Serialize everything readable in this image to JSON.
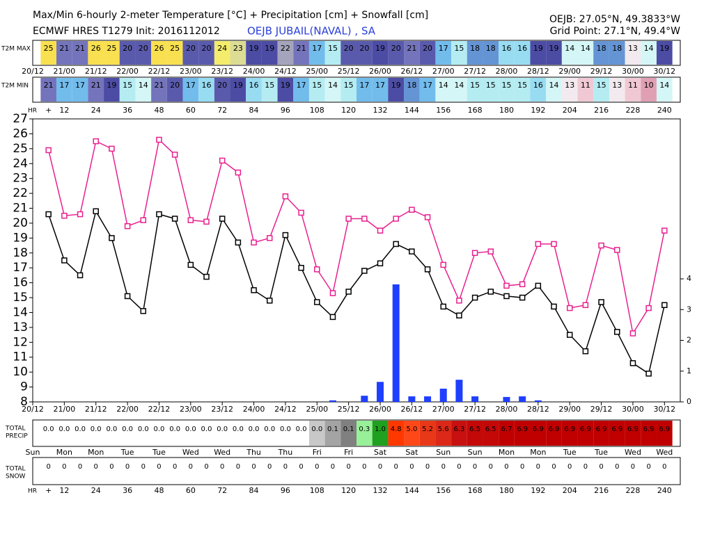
{
  "header": {
    "title": "Max/Min 6-hourly 2-meter Temperature [°C] + Precipitation [cm] + Snowfall [cm]",
    "model": "ECMWF HRES T1279 Init: 2016112012",
    "station": "OEJB JUBAIL(NAVAL) , SA",
    "coords": "OEJB: 27.05°N, 49.3833°W",
    "grid_point": "Grid Point: 27.1°N, 49.4°W"
  },
  "chart_data": {
    "type": "line",
    "x": [
      6,
      12,
      18,
      24,
      30,
      36,
      42,
      48,
      54,
      60,
      66,
      72,
      78,
      84,
      90,
      96,
      102,
      108,
      114,
      120,
      126,
      132,
      138,
      144,
      150,
      156,
      162,
      168,
      174,
      180,
      186,
      192,
      198,
      204,
      210,
      216,
      222,
      228,
      234,
      240
    ],
    "xlim": [
      0,
      246
    ],
    "xticks": [
      {
        "value": 0,
        "label": "20/12"
      },
      {
        "value": 12,
        "label": "21/00"
      },
      {
        "value": 24,
        "label": "21/12"
      },
      {
        "value": 36,
        "label": "22/00"
      },
      {
        "value": 48,
        "label": "22/12"
      },
      {
        "value": 60,
        "label": "23/00"
      },
      {
        "value": 72,
        "label": "23/12"
      },
      {
        "value": 84,
        "label": "24/00"
      },
      {
        "value": 96,
        "label": "24/12"
      },
      {
        "value": 108,
        "label": "25/00"
      },
      {
        "value": 120,
        "label": "25/12"
      },
      {
        "value": 132,
        "label": "26/00"
      },
      {
        "value": 144,
        "label": "26/12"
      },
      {
        "value": 156,
        "label": "27/00"
      },
      {
        "value": 168,
        "label": "27/12"
      },
      {
        "value": 180,
        "label": "28/00"
      },
      {
        "value": 192,
        "label": "28/12"
      },
      {
        "value": 204,
        "label": "29/00"
      },
      {
        "value": 216,
        "label": "29/12"
      },
      {
        "value": 228,
        "label": "30/00"
      },
      {
        "value": 240,
        "label": "30/12"
      }
    ],
    "day_labels": [
      "Sun",
      "Mon",
      "Mon",
      "Tue",
      "Tue",
      "Wed",
      "Wed",
      "Thu",
      "Thu",
      "Fri",
      "Fri",
      "Sat",
      "Sat",
      "Sun",
      "Sun",
      "Mon",
      "Mon",
      "Tue",
      "Tue",
      "Wed",
      "Wed"
    ],
    "hr_label": "HR",
    "hr_ticks": [
      {
        "value": 6,
        "label": "+"
      },
      12,
      24,
      36,
      48,
      60,
      72,
      84,
      96,
      108,
      120,
      132,
      144,
      156,
      168,
      180,
      192,
      204,
      216,
      228,
      240
    ],
    "ylim": [
      8,
      27
    ],
    "yticks": [
      8,
      9,
      10,
      11,
      12,
      13,
      14,
      15,
      16,
      17,
      18,
      19,
      20,
      21,
      22,
      23,
      24,
      25,
      26,
      27
    ],
    "y2lim": [
      0,
      9.2
    ],
    "y2ticks": [
      0,
      1,
      2,
      3,
      4
    ],
    "series": [
      {
        "name": "T2M MAX",
        "color": "#e8208f",
        "values": [
          24.9,
          20.5,
          20.6,
          25.5,
          25.0,
          19.8,
          20.2,
          25.6,
          24.6,
          20.2,
          20.1,
          24.2,
          23.4,
          18.7,
          19.0,
          21.8,
          20.7,
          16.9,
          15.3,
          20.3,
          20.3,
          19.5,
          20.3,
          20.9,
          20.4,
          17.2,
          14.8,
          18.0,
          18.1,
          15.8,
          15.9,
          18.6,
          18.6,
          14.3,
          14.5,
          18.5,
          18.2,
          12.6,
          14.3,
          19.5
        ],
        "table_values": [
          25,
          21,
          21,
          26,
          25,
          20,
          20,
          26,
          25,
          20,
          20,
          24,
          23,
          19,
          19,
          22,
          21,
          17,
          15,
          20,
          20,
          19,
          20,
          21,
          20,
          17,
          15,
          18,
          18,
          16,
          16,
          19,
          19,
          14,
          14,
          18,
          18,
          13,
          14,
          19
        ]
      },
      {
        "name": "T2M MIN",
        "color": "#000000",
        "values": [
          20.6,
          17.5,
          16.5,
          20.8,
          19.0,
          15.1,
          14.1,
          20.6,
          20.3,
          17.2,
          16.4,
          20.3,
          18.7,
          15.5,
          14.8,
          19.2,
          17.0,
          14.7,
          13.7,
          15.4,
          16.8,
          17.3,
          18.6,
          18.1,
          16.9,
          14.4,
          13.8,
          15.0,
          15.4,
          15.1,
          15.0,
          15.8,
          14.4,
          12.5,
          11.4,
          14.7,
          12.7,
          10.6,
          9.9,
          14.5
        ],
        "table_values": [
          21,
          17,
          17,
          21,
          19,
          15,
          14,
          21,
          20,
          17,
          16,
          20,
          19,
          16,
          15,
          19,
          17,
          15,
          14,
          15,
          17,
          17,
          19,
          18,
          17,
          14,
          14,
          15,
          15,
          15,
          15,
          16,
          14,
          13,
          11,
          15,
          13,
          11,
          10,
          14
        ]
      },
      {
        "type": "bar",
        "axis": "y2",
        "color": "#1f3fff",
        "values": [
          0,
          0,
          0,
          0,
          0,
          0,
          0,
          0,
          0,
          0,
          0,
          0,
          0,
          0,
          0,
          0,
          0,
          0,
          0.05,
          0,
          0.2,
          0.65,
          3.82,
          0.18,
          0.18,
          0.43,
          0.72,
          0.18,
          0,
          0.16,
          0.18,
          0.05,
          0,
          0,
          0,
          0,
          0,
          0,
          0,
          0
        ]
      }
    ],
    "temp_colors": {
      "10": "#e0a0b4",
      "11": "#f0c8d4",
      "13": "#f2eaee",
      "14": "#d4f6f6",
      "15": "#b4ecf2",
      "16": "#98dcf2",
      "17": "#72bcec",
      "18": "#6494d4",
      "19": "#4c4ca4",
      "20": "#5a5aac",
      "21": "#7474bc",
      "22": "#a4a4bc",
      "23": "#dcdc94",
      "24": "#f4ec6c",
      "25": "#f8e050",
      "26": "#f8e050"
    },
    "precip_total": {
      "label": [
        "TOTAL",
        "PRECIP"
      ],
      "values": [
        0,
        0,
        0,
        0,
        0,
        0,
        0,
        0,
        0,
        0,
        0,
        0,
        0,
        0,
        0,
        0,
        0,
        0,
        0.1,
        0.1,
        0.3,
        1.0,
        4.8,
        5.0,
        5.2,
        5.6,
        6.3,
        6.5,
        6.5,
        6.7,
        6.9,
        6.9,
        6.9,
        6.9,
        6.9,
        6.9,
        6.9,
        6.9,
        6.9,
        6.9
      ],
      "value_labels": [
        "0.0",
        "0.0",
        "0.0",
        "0.0",
        "0.0",
        "0.0",
        "0.0",
        "0.0",
        "0.0",
        "0.0",
        "0.0",
        "0.0",
        "0.0",
        "0.0",
        "0.0",
        "0.0",
        "0.0",
        "0.0",
        "0.1",
        "0.1",
        "0.3",
        "1.0",
        "4.8",
        "5.0",
        "5.2",
        "5.6",
        "6.3",
        "6.5",
        "6.5",
        "6.7",
        "6.9",
        "6.9",
        "6.9",
        "6.9",
        "6.9",
        "6.9",
        "6.9",
        "6.9",
        "6.9",
        "6.9"
      ],
      "colors": [
        "#ffffff",
        "#ffffff",
        "#ffffff",
        "#ffffff",
        "#ffffff",
        "#ffffff",
        "#ffffff",
        "#ffffff",
        "#ffffff",
        "#ffffff",
        "#ffffff",
        "#ffffff",
        "#ffffff",
        "#ffffff",
        "#ffffff",
        "#ffffff",
        "#ffffff",
        "#c8c8c8",
        "#a4a4a4",
        "#808080",
        "#98f098",
        "#20a020",
        "#ff3800",
        "#ff4818",
        "#e83818",
        "#dc2818",
        "#c81010",
        "#c40808",
        "#c40808",
        "#c00000",
        "#c00000",
        "#c00000",
        "#c00000",
        "#c00000",
        "#c00000",
        "#c00000",
        "#c00000",
        "#c00000",
        "#c00000",
        "#c00000"
      ]
    },
    "snow_total": {
      "label": [
        "TOTAL",
        "SNOW"
      ],
      "values": [
        0,
        0,
        0,
        0,
        0,
        0,
        0,
        0,
        0,
        0,
        0,
        0,
        0,
        0,
        0,
        0,
        0,
        0,
        0,
        0,
        0,
        0,
        0,
        0,
        0,
        0,
        0,
        0,
        0,
        0,
        0,
        0,
        0,
        0,
        0,
        0,
        0,
        0,
        0,
        0
      ]
    }
  }
}
